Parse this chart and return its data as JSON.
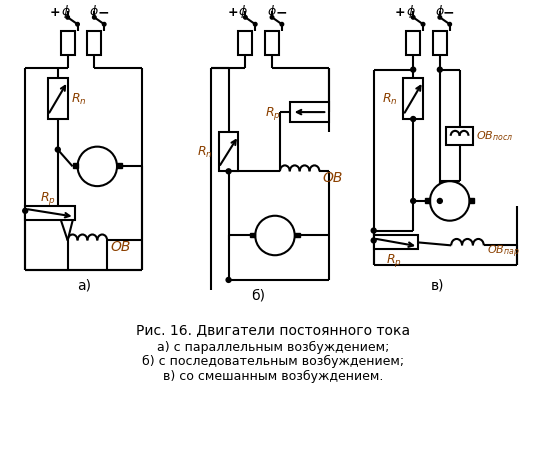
{
  "title": "Рис. 16. Двигатели постоянного тока",
  "subtitle_a": "а) с параллельным возбуждением;",
  "subtitle_b": "б) с последовательным возбуждением;",
  "subtitle_c": "в) со смешанным возбуждением.",
  "label_a": "а)",
  "label_b": "б)",
  "label_c": "в)",
  "bg_color": "#ffffff",
  "line_color": "#000000",
  "italic_color": "#8B4000"
}
